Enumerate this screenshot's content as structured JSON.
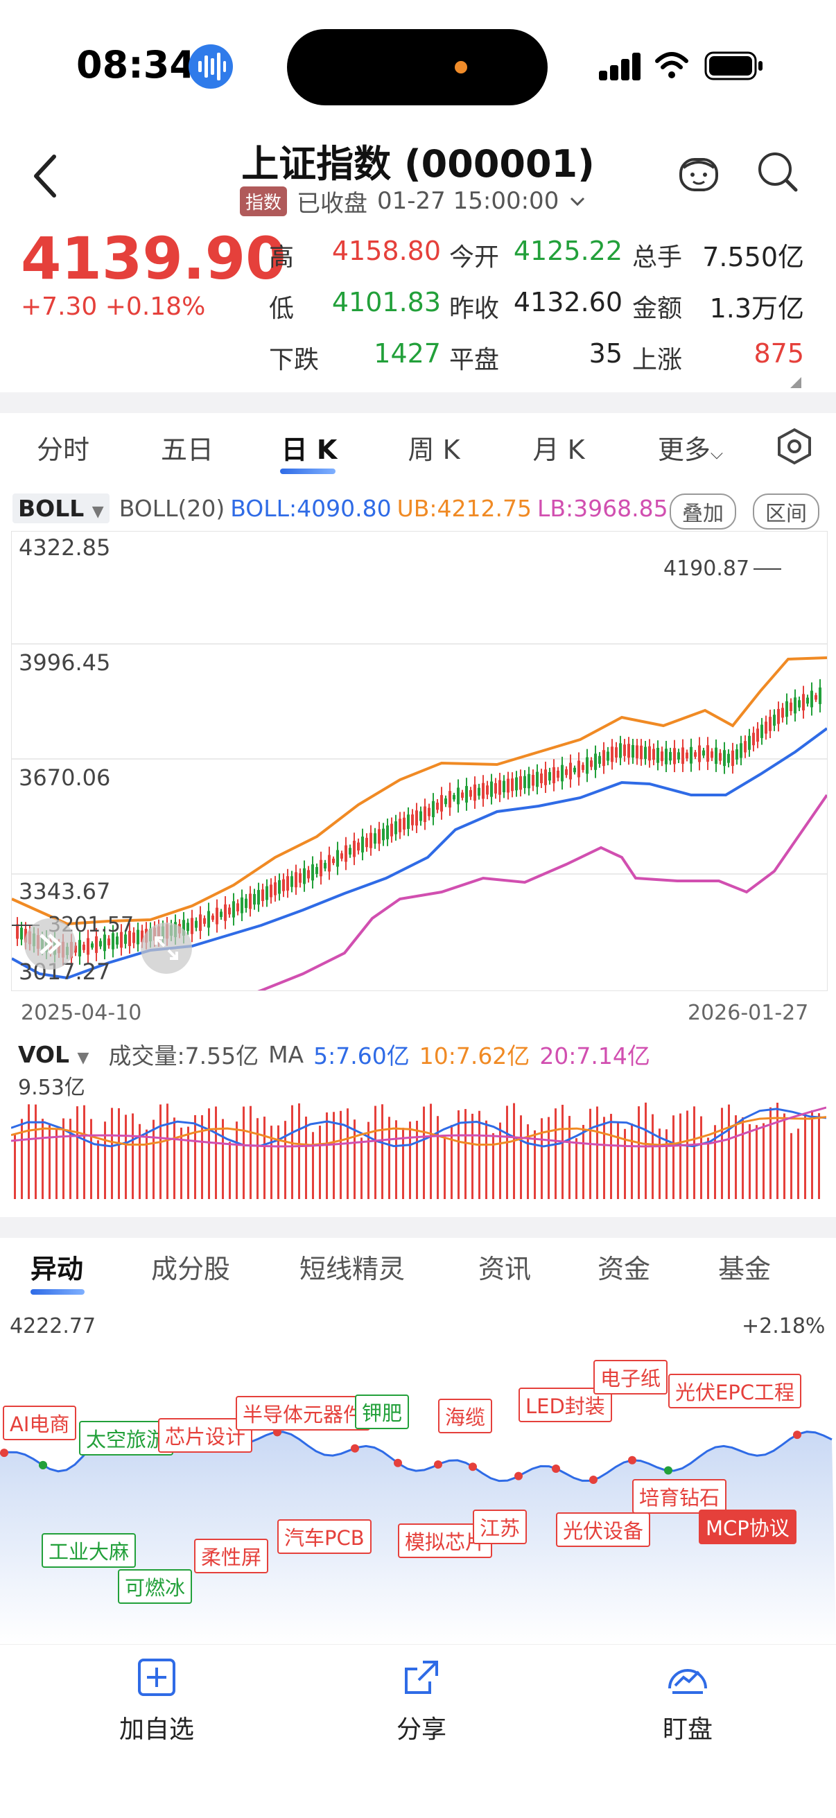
{
  "status": {
    "time": "08:34"
  },
  "header": {
    "title": "上证指数 (000001)",
    "badge": "指数",
    "market_status": "已收盘",
    "datetime": "01-27 15:00:00"
  },
  "quote": {
    "price": "4139.90",
    "change": "+7.30 +0.18%",
    "high_label": "高",
    "high": "4158.80",
    "open_label": "今开",
    "open": "4125.22",
    "vol_label": "总手",
    "vol": "7.550亿",
    "low_label": "低",
    "low": "4101.83",
    "prev_label": "昨收",
    "prev": "4132.60",
    "amount_label": "金额",
    "amount": "1.3万亿",
    "down_label": "下跌",
    "down": "1427",
    "flat_label": "平盘",
    "flat": "35",
    "up_label": "上涨",
    "up": "875"
  },
  "tabs": [
    "分时",
    "五日",
    "日 K",
    "周 K",
    "月 K",
    "更多"
  ],
  "indicator": {
    "name": "BOLL",
    "params": "BOLL(20)",
    "boll": "BOLL:4090.80",
    "ub": "UB:4212.75",
    "lb": "LB:3968.85",
    "overlay": "叠加",
    "range": "区间"
  },
  "kchart": {
    "y_labels": [
      "4322.85",
      "3996.45",
      "3670.06",
      "3343.67",
      "3017.27"
    ],
    "max_label": "4190.87",
    "min_label": "3201.57",
    "start_date": "2025-04-10",
    "end_date": "2026-01-27"
  },
  "volume": {
    "name": "VOL",
    "total": "成交量:7.55亿",
    "ma_label": "MA",
    "ma5": "5:7.60亿",
    "ma10": "10:7.62亿",
    "ma20": "20:7.14亿",
    "max": "9.53亿"
  },
  "tabs2": [
    "异动",
    "成分股",
    "短线精灵",
    "资讯",
    "资金",
    "基金"
  ],
  "intraday": {
    "high": "4222.77",
    "pct": "+2.18%",
    "tags": [
      "AI电商",
      "太空旅游",
      "芯片设计",
      "半导体元器件",
      "钾肥",
      "海缆",
      "LED封装",
      "电子纸",
      "光伏EPC工程",
      "工业大麻",
      "可燃冰",
      "柔性屏",
      "汽车PCB",
      "模拟芯片",
      "江苏",
      "光伏设备",
      "培育钻石",
      "MCP协议"
    ]
  },
  "bottom": {
    "watch": "加自选",
    "share": "分享",
    "monitor": "盯盘"
  },
  "colors": {
    "red": "#e5403b",
    "green": "#22a03a",
    "blue": "#2f6be6",
    "orange": "#f08a24",
    "magenta": "#d14fb0"
  }
}
